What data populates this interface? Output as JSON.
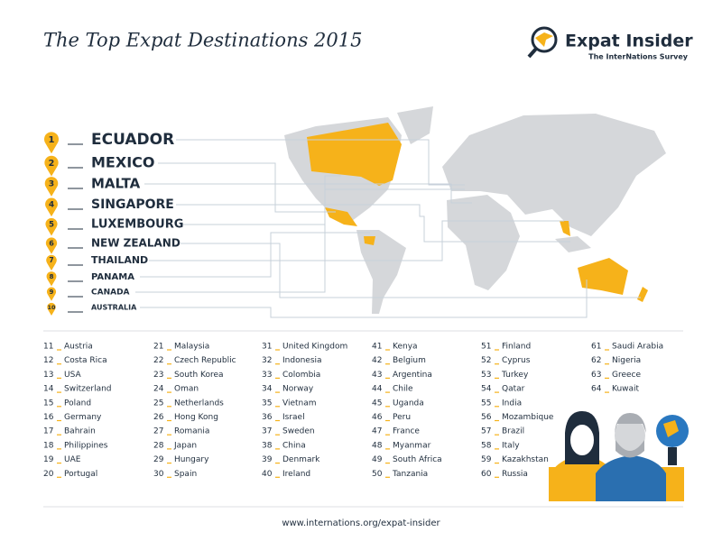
{
  "header": {
    "title": "The Top Expat Destinations 2015",
    "logo": {
      "name": "Expat Insider",
      "tagline": "The InterNations Survey"
    }
  },
  "top_ten": [
    {
      "rank": 1,
      "country": "ECUADOR"
    },
    {
      "rank": 2,
      "country": "MEXICO"
    },
    {
      "rank": 3,
      "country": "MALTA"
    },
    {
      "rank": 4,
      "country": "SINGAPORE"
    },
    {
      "rank": 5,
      "country": "LUXEMBOURG"
    },
    {
      "rank": 6,
      "country": "NEW ZEALAND"
    },
    {
      "rank": 7,
      "country": "THAILAND"
    },
    {
      "rank": 8,
      "country": "PANAMA"
    },
    {
      "rank": 9,
      "country": "CANADA"
    },
    {
      "rank": 10,
      "country": "AUSTRALIA"
    }
  ],
  "others": [
    {
      "rank": 11,
      "country": "Austria"
    },
    {
      "rank": 12,
      "country": "Costa Rica"
    },
    {
      "rank": 13,
      "country": "USA"
    },
    {
      "rank": 14,
      "country": "Switzerland"
    },
    {
      "rank": 15,
      "country": "Poland"
    },
    {
      "rank": 16,
      "country": "Germany"
    },
    {
      "rank": 17,
      "country": "Bahrain"
    },
    {
      "rank": 18,
      "country": "Philippines"
    },
    {
      "rank": 19,
      "country": "UAE"
    },
    {
      "rank": 20,
      "country": "Portugal"
    },
    {
      "rank": 21,
      "country": "Malaysia"
    },
    {
      "rank": 22,
      "country": "Czech Republic"
    },
    {
      "rank": 23,
      "country": "South Korea"
    },
    {
      "rank": 24,
      "country": "Oman"
    },
    {
      "rank": 25,
      "country": "Netherlands"
    },
    {
      "rank": 26,
      "country": "Hong Kong"
    },
    {
      "rank": 27,
      "country": "Romania"
    },
    {
      "rank": 28,
      "country": "Japan"
    },
    {
      "rank": 29,
      "country": "Hungary"
    },
    {
      "rank": 30,
      "country": "Spain"
    },
    {
      "rank": 31,
      "country": "United Kingdom"
    },
    {
      "rank": 32,
      "country": "Indonesia"
    },
    {
      "rank": 33,
      "country": "Colombia"
    },
    {
      "rank": 34,
      "country": "Norway"
    },
    {
      "rank": 35,
      "country": "Vietnam"
    },
    {
      "rank": 36,
      "country": "Israel"
    },
    {
      "rank": 37,
      "country": "Sweden"
    },
    {
      "rank": 38,
      "country": "China"
    },
    {
      "rank": 39,
      "country": "Denmark"
    },
    {
      "rank": 40,
      "country": "Ireland"
    },
    {
      "rank": 41,
      "country": "Kenya"
    },
    {
      "rank": 42,
      "country": "Belgium"
    },
    {
      "rank": 43,
      "country": "Argentina"
    },
    {
      "rank": 44,
      "country": "Chile"
    },
    {
      "rank": 45,
      "country": "Uganda"
    },
    {
      "rank": 46,
      "country": "Peru"
    },
    {
      "rank": 47,
      "country": "France"
    },
    {
      "rank": 48,
      "country": "Myanmar"
    },
    {
      "rank": 49,
      "country": "South Africa"
    },
    {
      "rank": 50,
      "country": "Tanzania"
    },
    {
      "rank": 51,
      "country": "Finland"
    },
    {
      "rank": 52,
      "country": "Cyprus"
    },
    {
      "rank": 53,
      "country": "Turkey"
    },
    {
      "rank": 54,
      "country": "Qatar"
    },
    {
      "rank": 55,
      "country": "India"
    },
    {
      "rank": 56,
      "country": "Mozambique"
    },
    {
      "rank": 57,
      "country": "Brazil"
    },
    {
      "rank": 58,
      "country": "Italy"
    },
    {
      "rank": 59,
      "country": "Kazakhstan"
    },
    {
      "rank": 60,
      "country": "Russia"
    },
    {
      "rank": 61,
      "country": "Saudi Arabia"
    },
    {
      "rank": 62,
      "country": "Nigeria"
    },
    {
      "rank": 63,
      "country": "Greece"
    },
    {
      "rank": 64,
      "country": "Kuwait"
    }
  ],
  "footer": {
    "url": "www.internations.org/expat-insider"
  }
}
